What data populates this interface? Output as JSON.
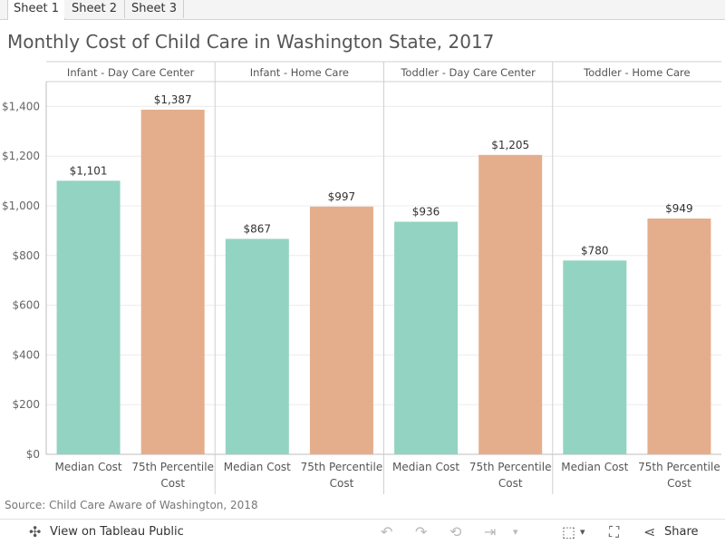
{
  "tabs": [
    {
      "label": "Sheet 1",
      "active": true
    },
    {
      "label": "Sheet 2",
      "active": false
    },
    {
      "label": "Sheet 3",
      "active": false
    }
  ],
  "source": "Source: Child Care Aware of Washington, 2018",
  "toolbar": {
    "view_label": "View on Tableau Public",
    "share_label": "Share",
    "icons": [
      "tableau-icon",
      "undo-icon",
      "redo-icon",
      "revert-icon",
      "forward-icon",
      "dropdown-icon",
      "download-icon",
      "fullscreen-icon",
      "share-icon"
    ]
  },
  "colors": {
    "median": "#93d3c1",
    "p75": "#e4ae8d",
    "grid": "#ececec",
    "axis": "#d0d0d0"
  },
  "chart_data": {
    "type": "bar",
    "title": "Monthly Cost of Child Care in Washington State, 2017",
    "ylim": [
      0,
      1500
    ],
    "yticks": [
      0,
      200,
      400,
      600,
      800,
      1000,
      1200,
      1400
    ],
    "ytick_labels": [
      "$0",
      "$200",
      "$400",
      "$600",
      "$800",
      "$1,000",
      "$1,200",
      "$1,400"
    ],
    "grid": true,
    "panels": [
      {
        "label": "Infant - Day Care Center",
        "bars": [
          {
            "category": [
              "Median Cost"
            ],
            "value": 1101,
            "value_label": "$1,101"
          },
          {
            "category": [
              "75th Percentile",
              "Cost"
            ],
            "value": 1387,
            "value_label": "$1,387"
          }
        ]
      },
      {
        "label": "Infant - Home Care",
        "bars": [
          {
            "category": [
              "Median Cost"
            ],
            "value": 867,
            "value_label": "$867"
          },
          {
            "category": [
              "75th Percentile",
              "Cost"
            ],
            "value": 997,
            "value_label": "$997"
          }
        ]
      },
      {
        "label": "Toddler - Day Care Center",
        "bars": [
          {
            "category": [
              "Median Cost"
            ],
            "value": 936,
            "value_label": "$936"
          },
          {
            "category": [
              "75th Percentile",
              "Cost"
            ],
            "value": 1205,
            "value_label": "$1,205"
          }
        ]
      },
      {
        "label": "Toddler - Home Care",
        "bars": [
          {
            "category": [
              "Median Cost"
            ],
            "value": 780,
            "value_label": "$780"
          },
          {
            "category": [
              "75th Percentile",
              "Cost"
            ],
            "value": 949,
            "value_label": "$949"
          }
        ]
      }
    ]
  }
}
